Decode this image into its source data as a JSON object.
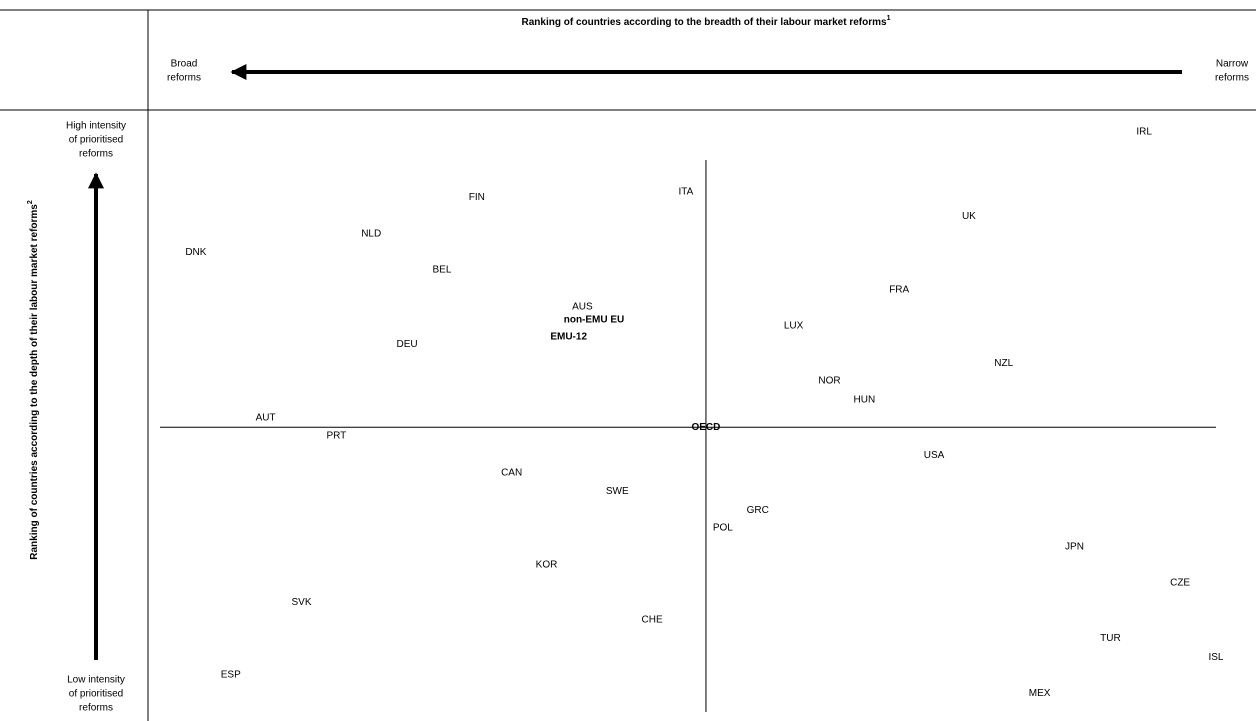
{
  "chart_data": {
    "type": "scatter",
    "title": "Ranking of countries according to the breadth of their labour market reforms",
    "title_note": "1",
    "y_label": "Ranking of countries according to the depth of their labour market reforms",
    "y_label_note": "2",
    "x_left_label": [
      "Broad",
      "reforms"
    ],
    "x_right_label": [
      "Narrow",
      "reforms"
    ],
    "y_top_label": [
      "High intensity",
      "of prioritised",
      "reforms"
    ],
    "y_bottom_label": [
      "Low intensity",
      "of prioritised",
      "reforms"
    ],
    "xlim": [
      0,
      100
    ],
    "ylim": [
      0,
      100
    ],
    "reference": "OECD",
    "points": [
      {
        "label": "IRL",
        "x": 93.2,
        "y": 96.4
      },
      {
        "label": "FIN",
        "x": 30.0,
        "y": 85.7
      },
      {
        "label": "ITA",
        "x": 49.8,
        "y": 86.6
      },
      {
        "label": "UK",
        "x": 76.6,
        "y": 82.6
      },
      {
        "label": "NLD",
        "x": 20.0,
        "y": 79.7
      },
      {
        "label": "DNK",
        "x": 3.4,
        "y": 76.7
      },
      {
        "label": "BEL",
        "x": 26.7,
        "y": 73.8
      },
      {
        "label": "FRA",
        "x": 70.0,
        "y": 70.5
      },
      {
        "label": "AUS",
        "x": 40.0,
        "y": 67.7
      },
      {
        "label": "non-EMU EU",
        "x": 41.1,
        "y": 65.6,
        "bold": true
      },
      {
        "label": "LUX",
        "x": 60.0,
        "y": 64.6
      },
      {
        "label": "EMU-12",
        "x": 38.7,
        "y": 62.8,
        "bold": true
      },
      {
        "label": "DEU",
        "x": 23.4,
        "y": 61.6
      },
      {
        "label": "NZL",
        "x": 79.9,
        "y": 58.5
      },
      {
        "label": "NOR",
        "x": 63.4,
        "y": 55.6
      },
      {
        "label": "HUN",
        "x": 66.7,
        "y": 52.5
      },
      {
        "label": "AUT",
        "x": 10.0,
        "y": 49.5
      },
      {
        "label": "OECD",
        "x": 51.7,
        "y": 48.0,
        "bold": true
      },
      {
        "label": "PRT",
        "x": 16.7,
        "y": 46.6
      },
      {
        "label": "USA",
        "x": 73.3,
        "y": 43.4
      },
      {
        "label": "CAN",
        "x": 33.3,
        "y": 40.5
      },
      {
        "label": "SWE",
        "x": 43.3,
        "y": 37.5
      },
      {
        "label": "GRC",
        "x": 56.6,
        "y": 34.4
      },
      {
        "label": "POL",
        "x": 53.3,
        "y": 31.5
      },
      {
        "label": "JPN",
        "x": 86.6,
        "y": 28.4
      },
      {
        "label": "KOR",
        "x": 36.6,
        "y": 25.4
      },
      {
        "label": "CZE",
        "x": 96.6,
        "y": 22.5
      },
      {
        "label": "SVK",
        "x": 13.4,
        "y": 19.3
      },
      {
        "label": "CHE",
        "x": 46.6,
        "y": 16.4
      },
      {
        "label": "TUR",
        "x": 90.0,
        "y": 13.4
      },
      {
        "label": "ISL",
        "x": 100.0,
        "y": 10.3
      },
      {
        "label": "ESP",
        "x": 6.7,
        "y": 7.4
      },
      {
        "label": "MEX",
        "x": 83.3,
        "y": 4.4
      }
    ]
  }
}
